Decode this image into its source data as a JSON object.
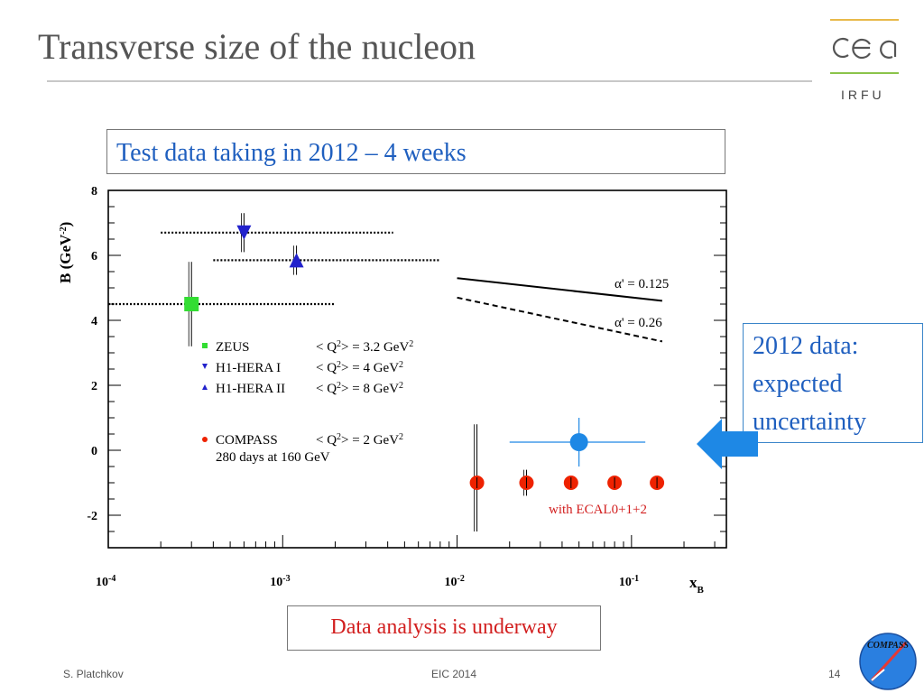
{
  "slide": {
    "title": "Transverse size of the nucleon",
    "test_box": "Test data taking in 2012 – 4 weeks",
    "side_box": [
      "2012 data:",
      "expected",
      "uncertainty"
    ],
    "bottom_box": "Data analysis is underway",
    "footer_left": "S. Platchkov",
    "footer_center": "EIC 2014",
    "footer_right": "14",
    "logo_text": "IRFU",
    "badge_text": "COMPASS"
  },
  "colors": {
    "title": "#555555",
    "blue_text": "#1f5fbf",
    "red_text": "#d21f1f",
    "zeus": "#33dd33",
    "h1": "#2222cc",
    "compass": "#ee2200",
    "expected": "#1e88e5"
  },
  "chart_data": {
    "type": "scatter",
    "xscale": "log",
    "xlim": [
      0.0001,
      0.35
    ],
    "ylim": [
      -3,
      8
    ],
    "xlabel": "x",
    "xlabel_sub": "B",
    "ylabel": "B (GeV",
    "ylabel_sup": "-2",
    "ylabel_end": ")",
    "x_ticks": [
      {
        "base": "10",
        "exp": "-4"
      },
      {
        "base": "10",
        "exp": "-3"
      },
      {
        "base": "10",
        "exp": "-2"
      },
      {
        "base": "10",
        "exp": "-1"
      }
    ],
    "y_ticks": [
      "-2",
      "0",
      "2",
      "4",
      "6",
      "8"
    ],
    "series": [
      {
        "name": "ZEUS",
        "marker": "square",
        "points": [
          {
            "x": 0.0003,
            "y": 4.5,
            "xmin": 0.0001,
            "xmax": 0.002,
            "ymin": 3.2,
            "ymax": 5.8
          }
        ]
      },
      {
        "name": "H1-HERA I",
        "marker": "triangle-down",
        "points": [
          {
            "x": 0.0006,
            "y": 6.7,
            "xmin": 0.0002,
            "xmax": 0.0043,
            "ymin": 6.1,
            "ymax": 7.3
          }
        ]
      },
      {
        "name": "H1-HERA II",
        "marker": "triangle-up",
        "points": [
          {
            "x": 0.0012,
            "y": 5.85,
            "xmin": 0.0004,
            "xmax": 0.008,
            "ymin": 5.4,
            "ymax": 6.3
          }
        ]
      },
      {
        "name": "COMPASS",
        "marker": "circle",
        "points": [
          {
            "x": 0.013,
            "y": -1,
            "ymin": -2.5,
            "ymax": 0.8
          },
          {
            "x": 0.025,
            "y": -1,
            "ymin": -1.4,
            "ymax": -0.6
          },
          {
            "x": 0.045,
            "y": -1,
            "ymin": -1.2,
            "ymax": -0.8
          },
          {
            "x": 0.08,
            "y": -1,
            "ymin": -1.2,
            "ymax": -0.8
          },
          {
            "x": 0.14,
            "y": -1,
            "ymin": -1.2,
            "ymax": -0.8
          }
        ]
      }
    ],
    "expected_point": {
      "x": 0.05,
      "y": 0.25,
      "xmin": 0.02,
      "xmax": 0.12,
      "ymin": -0.5,
      "ymax": 1.0
    },
    "fit_lines": [
      {
        "label": "α' = 0.125",
        "style": "solid",
        "x": [
          0.01,
          0.15
        ],
        "y": [
          5.3,
          4.6
        ]
      },
      {
        "label": "α' = 0.26",
        "style": "dashed",
        "x": [
          0.01,
          0.15
        ],
        "y": [
          4.7,
          3.35
        ]
      }
    ],
    "legend": [
      {
        "name": "ZEUS",
        "q2_pre": "< Q",
        "q2_sup": "2",
        "q2_post": "> = 3.2 GeV",
        "unit_sup": "2"
      },
      {
        "name": "H1-HERA I",
        "q2_pre": "< Q",
        "q2_sup": "2",
        "q2_post": "> = 4 GeV",
        "unit_sup": "2"
      },
      {
        "name": "H1-HERA II",
        "q2_pre": "< Q",
        "q2_sup": "2",
        "q2_post": "> = 8 GeV",
        "unit_sup": "2"
      },
      {
        "name": "COMPASS",
        "q2_pre": "< Q",
        "q2_sup": "2",
        "q2_post": "> = 2 GeV",
        "unit_sup": "2"
      }
    ],
    "legend_note": "280 days at 160 GeV",
    "annotation": "with ECAL0+1+2"
  }
}
